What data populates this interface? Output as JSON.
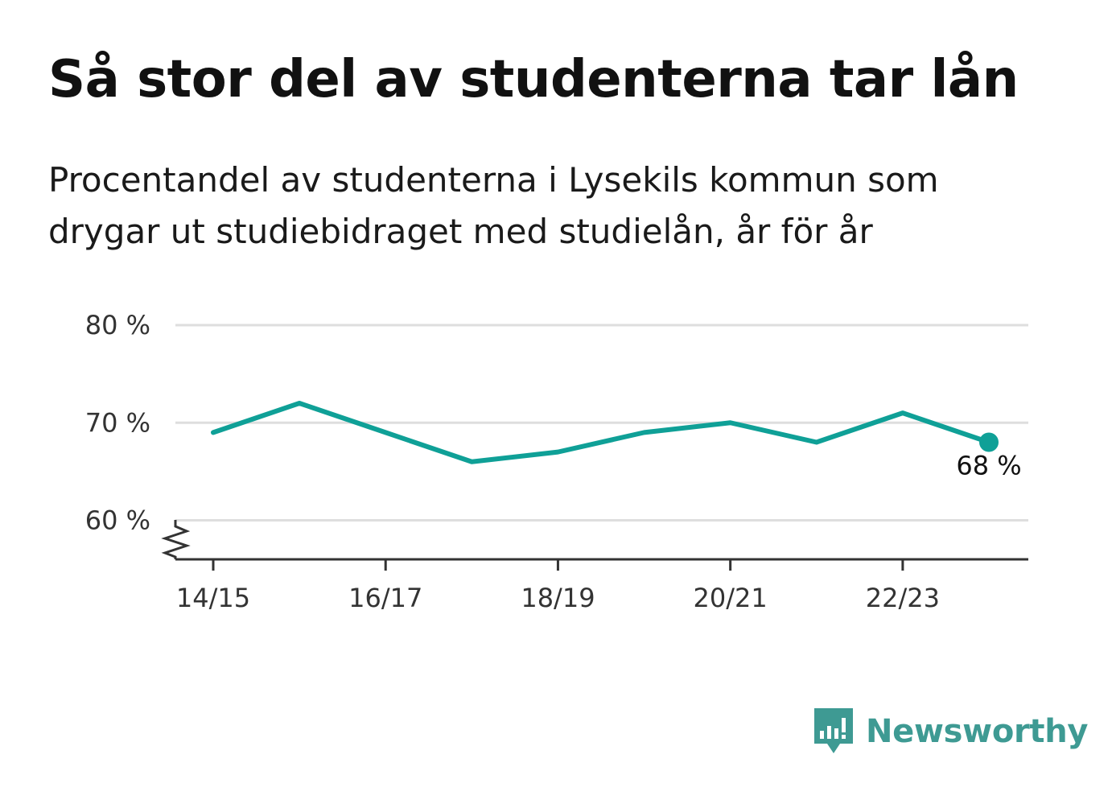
{
  "title": "Så stor del av studenterna tar lån",
  "subtitle_lines": [
    "Procentandel av studenterna i Lysekils kommun som",
    "drygar ut studiebidraget med studielån, år för år"
  ],
  "brand": {
    "name": "Newsworthy",
    "color": "#3e9a93",
    "icon": "bar-chart-speech-bubble-icon"
  },
  "chart_data": {
    "type": "line",
    "x": [
      "14/15",
      "15/16",
      "16/17",
      "17/18",
      "18/19",
      "19/20",
      "20/21",
      "21/22",
      "22/23",
      "23/24"
    ],
    "series": [
      {
        "values": [
          69,
          72,
          69,
          66,
          67,
          69,
          70,
          68,
          71,
          68
        ],
        "color": "#0fa097"
      }
    ],
    "x_tick_labels": [
      "14/15",
      "16/17",
      "18/19",
      "20/21",
      "22/23"
    ],
    "y_ticks": [
      60,
      70,
      80
    ],
    "y_tick_labels": [
      "60 %",
      "70 %",
      "80 %"
    ],
    "ylim": [
      56,
      80
    ],
    "axis_break": true,
    "grid": true,
    "last_point_label": "68 %"
  }
}
